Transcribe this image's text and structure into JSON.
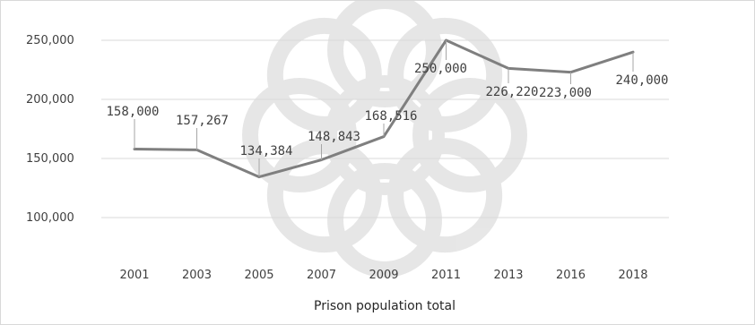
{
  "chart_data": {
    "type": "line",
    "title": "",
    "xlabel": "Prison population total",
    "ylabel": "",
    "categories": [
      "2001",
      "2003",
      "2005",
      "2007",
      "2009",
      "2011",
      "2013",
      "2016",
      "2018"
    ],
    "values": [
      158000,
      157267,
      134384,
      148843,
      168516,
      250000,
      226220,
      223000,
      240000
    ],
    "data_labels": [
      "158,000",
      "157,267",
      "134,384",
      "148,843",
      "168,516",
      "250,000",
      "226,220",
      "223,000",
      "240,000"
    ],
    "y_ticks": [
      100000,
      150000,
      200000,
      250000
    ],
    "y_tick_labels": [
      "100,000",
      "150,000",
      "200,000",
      "250,000"
    ],
    "ylim": [
      100000,
      250000
    ],
    "grid": true,
    "legend": "none",
    "line_color": "#7f7f7f"
  }
}
